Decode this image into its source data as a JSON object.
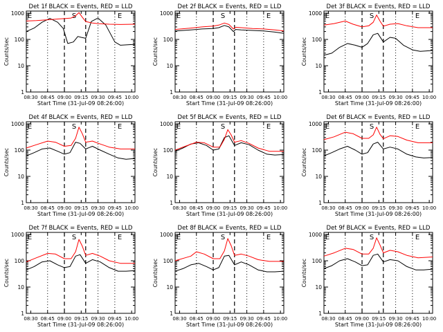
{
  "figure": {
    "xlabel": "Start Time (31-Jul-09 08:26:00)",
    "ylabel": "Counts/sec",
    "series_colors": {
      "events": "#000000",
      "lld": "#ff0000"
    }
  },
  "chart_data": [
    {
      "type": "line",
      "title": "Det 1f BLACK = Events, RED = LLD",
      "x_ticks": [
        "08:30",
        "08:45",
        "09:00",
        "09:15",
        "09:30",
        "09:45",
        "10:00"
      ],
      "y_ticks": [
        "1",
        "10",
        "100",
        "1000"
      ],
      "ylim": [
        1,
        1200
      ],
      "ylog": true,
      "markers": [
        "E",
        "S",
        "E"
      ],
      "dashed_lines_at": [
        "09:00",
        "09:19"
      ],
      "dotted_lines_at": [
        "08:45",
        "09:30",
        "09:45"
      ],
      "series": [
        {
          "color": "black",
          "x": [
            "08:26",
            "08:33",
            "08:40",
            "08:47",
            "08:54",
            "08:59",
            "09:03",
            "09:08",
            "09:12",
            "09:15",
            "09:19",
            "09:24",
            "09:30",
            "09:37",
            "09:45",
            "09:50",
            "09:55",
            "10:03"
          ],
          "y": [
            200,
            270,
            450,
            630,
            450,
            260,
            70,
            80,
            130,
            120,
            110,
            480,
            650,
            350,
            80,
            60,
            62,
            65
          ]
        },
        {
          "color": "red",
          "x": [
            "08:26",
            "08:35",
            "08:45",
            "08:55",
            "09:00",
            "09:06",
            "09:10",
            "09:13",
            "09:16",
            "09:19",
            "09:25",
            "09:30",
            "09:40",
            "09:50",
            "10:03"
          ],
          "y": [
            500,
            520,
            560,
            600,
            620,
            650,
            800,
            1050,
            700,
            480,
            420,
            400,
            380,
            370,
            380
          ]
        }
      ]
    },
    {
      "type": "line",
      "title": "Det 2f BLACK = Events, RED = LLD",
      "x_ticks": [
        "08:30",
        "08:45",
        "09:00",
        "09:15",
        "09:30",
        "09:45",
        "10:00"
      ],
      "y_ticks": [
        "1",
        "10",
        "100",
        "1000"
      ],
      "ylim": [
        1,
        1200
      ],
      "ylog": true,
      "markers": [
        "E",
        "S",
        "E"
      ],
      "dashed_lines_at": [
        "09:00",
        "09:19"
      ],
      "dotted_lines_at": [
        "08:45",
        "09:30",
        "09:45"
      ],
      "series": [
        {
          "color": "black",
          "x": [
            "08:26",
            "08:40",
            "08:50",
            "09:00",
            "09:05",
            "09:10",
            "09:14",
            "09:18",
            "09:20",
            "09:25",
            "09:35",
            "09:45",
            "09:55",
            "10:03"
          ],
          "y": [
            210,
            230,
            250,
            260,
            280,
            340,
            300,
            200,
            240,
            230,
            220,
            210,
            190,
            170
          ]
        },
        {
          "color": "red",
          "x": [
            "08:26",
            "08:40",
            "08:50",
            "09:00",
            "09:05",
            "09:10",
            "09:14",
            "09:18",
            "09:20",
            "09:25",
            "09:35",
            "09:45",
            "09:55",
            "10:03"
          ],
          "y": [
            240,
            270,
            300,
            320,
            350,
            420,
            370,
            250,
            290,
            280,
            260,
            250,
            230,
            210
          ]
        }
      ]
    },
    {
      "type": "line",
      "title": "Det 3f BLACK = Events, RED = LLD",
      "x_ticks": [
        "08:30",
        "08:45",
        "09:00",
        "09:15",
        "09:30",
        "09:45",
        "10:00"
      ],
      "y_ticks": [
        "1",
        "10",
        "100",
        "1000"
      ],
      "ylim": [
        1,
        1200
      ],
      "ylog": true,
      "markers": [
        "E",
        "S",
        "E"
      ],
      "dashed_lines_at": [
        "09:00",
        "09:19"
      ],
      "dotted_lines_at": [
        "08:45",
        "09:30",
        "09:45"
      ],
      "series": [
        {
          "color": "black",
          "x": [
            "08:26",
            "08:33",
            "08:40",
            "08:47",
            "08:54",
            "09:00",
            "09:05",
            "09:10",
            "09:14",
            "09:19",
            "09:25",
            "09:30",
            "09:37",
            "09:45",
            "09:52",
            "10:03"
          ],
          "y": [
            25,
            30,
            50,
            70,
            60,
            50,
            70,
            150,
            170,
            80,
            120,
            110,
            60,
            40,
            35,
            38
          ]
        },
        {
          "color": "red",
          "x": [
            "08:26",
            "08:35",
            "08:45",
            "08:52",
            "09:00",
            "09:06",
            "09:10",
            "09:13",
            "09:16",
            "09:19",
            "09:25",
            "09:32",
            "09:40",
            "09:50",
            "10:03"
          ],
          "y": [
            350,
            400,
            500,
            380,
            300,
            330,
            450,
            850,
            500,
            320,
            380,
            400,
            330,
            280,
            280
          ]
        }
      ]
    },
    {
      "type": "line",
      "title": "Det 4f BLACK = Events, RED = LLD",
      "x_ticks": [
        "08:30",
        "08:45",
        "09:00",
        "09:15",
        "09:30",
        "09:45",
        "10:00"
      ],
      "y_ticks": [
        "1",
        "10",
        "100",
        "1000"
      ],
      "ylim": [
        1,
        1200
      ],
      "ylog": true,
      "markers": [
        "E",
        "S",
        "E"
      ],
      "dashed_lines_at": [
        "09:00",
        "09:19"
      ],
      "dotted_lines_at": [
        "08:45",
        "09:30",
        "09:45"
      ],
      "series": [
        {
          "color": "black",
          "x": [
            "08:26",
            "08:33",
            "08:40",
            "08:47",
            "08:54",
            "09:00",
            "09:05",
            "09:10",
            "09:14",
            "09:19",
            "09:25",
            "09:32",
            "09:40",
            "09:48",
            "09:55",
            "10:03"
          ],
          "y": [
            60,
            80,
            110,
            120,
            90,
            70,
            80,
            200,
            180,
            110,
            140,
            100,
            70,
            50,
            45,
            48
          ]
        },
        {
          "color": "red",
          "x": [
            "08:26",
            "08:35",
            "08:45",
            "08:52",
            "09:00",
            "09:06",
            "09:10",
            "09:13",
            "09:16",
            "09:19",
            "09:25",
            "09:32",
            "09:40",
            "09:50",
            "10:03"
          ],
          "y": [
            120,
            160,
            220,
            200,
            140,
            150,
            280,
            750,
            420,
            200,
            220,
            170,
            130,
            110,
            110
          ]
        }
      ]
    },
    {
      "type": "line",
      "title": "Det 5f BLACK = Events, RED = LLD",
      "x_ticks": [
        "08:30",
        "08:45",
        "09:00",
        "09:15",
        "09:30",
        "09:45",
        "10:00"
      ],
      "y_ticks": [
        "1",
        "10",
        "100",
        "1000"
      ],
      "ylim": [
        1,
        1200
      ],
      "ylog": true,
      "markers": [
        "E",
        "S",
        "E"
      ],
      "dashed_lines_at": [
        "09:00",
        "09:19"
      ],
      "dotted_lines_at": [
        "08:45",
        "09:30",
        "09:45"
      ],
      "series": [
        {
          "color": "black",
          "x": [
            "08:26",
            "08:33",
            "08:40",
            "08:47",
            "08:54",
            "09:00",
            "09:05",
            "09:10",
            "09:14",
            "09:19",
            "09:25",
            "09:32",
            "09:40",
            "09:48",
            "09:55",
            "10:03"
          ],
          "y": [
            90,
            120,
            170,
            190,
            150,
            100,
            110,
            300,
            350,
            150,
            190,
            160,
            100,
            70,
            65,
            68
          ]
        },
        {
          "color": "red",
          "x": [
            "08:26",
            "08:35",
            "08:45",
            "08:52",
            "09:00",
            "09:06",
            "09:10",
            "09:13",
            "09:16",
            "09:19",
            "09:25",
            "09:32",
            "09:40",
            "09:50",
            "10:03"
          ],
          "y": [
            100,
            140,
            200,
            190,
            130,
            130,
            260,
            600,
            380,
            200,
            230,
            180,
            120,
            90,
            90
          ]
        }
      ]
    },
    {
      "type": "line",
      "title": "Det 6f BLACK = Events, RED = LLD",
      "x_ticks": [
        "08:30",
        "08:45",
        "09:00",
        "09:15",
        "09:30",
        "09:45",
        "10:00"
      ],
      "y_ticks": [
        "1",
        "10",
        "100",
        "1000"
      ],
      "ylim": [
        1,
        1200
      ],
      "ylog": true,
      "markers": [
        "E",
        "S",
        "E"
      ],
      "dashed_lines_at": [
        "09:00",
        "09:19"
      ],
      "dotted_lines_at": [
        "08:45",
        "09:30",
        "09:45"
      ],
      "series": [
        {
          "color": "black",
          "x": [
            "08:26",
            "08:33",
            "08:40",
            "08:47",
            "08:54",
            "09:00",
            "09:05",
            "09:10",
            "09:14",
            "09:19",
            "09:25",
            "09:32",
            "09:40",
            "09:48",
            "09:55",
            "10:03"
          ],
          "y": [
            60,
            80,
            110,
            140,
            100,
            70,
            80,
            170,
            200,
            110,
            130,
            110,
            70,
            55,
            50,
            52
          ]
        },
        {
          "color": "red",
          "x": [
            "08:26",
            "08:35",
            "08:45",
            "08:52",
            "09:00",
            "09:06",
            "09:10",
            "09:13",
            "09:16",
            "09:19",
            "09:25",
            "09:32",
            "09:40",
            "09:50",
            "10:03"
          ],
          "y": [
            250,
            320,
            480,
            420,
            280,
            280,
            380,
            750,
            400,
            270,
            350,
            330,
            240,
            190,
            190
          ]
        }
      ]
    },
    {
      "type": "line",
      "title": "Det 7f BLACK = Events, RED = LLD",
      "x_ticks": [
        "08:30",
        "08:45",
        "09:00",
        "09:15",
        "09:30",
        "09:45",
        "10:00"
      ],
      "y_ticks": [
        "1",
        "10",
        "100",
        "1000"
      ],
      "ylim": [
        1,
        1200
      ],
      "ylog": true,
      "markers": [
        "E",
        "S",
        "E"
      ],
      "dashed_lines_at": [
        "09:00",
        "09:19"
      ],
      "dotted_lines_at": [
        "08:45",
        "09:30",
        "09:45"
      ],
      "series": [
        {
          "color": "black",
          "x": [
            "08:26",
            "08:33",
            "08:40",
            "08:47",
            "08:54",
            "09:00",
            "09:05",
            "09:10",
            "09:14",
            "09:19",
            "09:25",
            "09:32",
            "09:40",
            "09:48",
            "09:55",
            "10:03"
          ],
          "y": [
            45,
            60,
            90,
            100,
            70,
            55,
            60,
            150,
            170,
            80,
            110,
            90,
            55,
            40,
            40,
            42
          ]
        },
        {
          "color": "red",
          "x": [
            "08:26",
            "08:35",
            "08:45",
            "08:52",
            "09:00",
            "09:06",
            "09:10",
            "09:13",
            "09:16",
            "09:19",
            "09:25",
            "09:32",
            "09:40",
            "09:50",
            "10:03"
          ],
          "y": [
            90,
            130,
            190,
            180,
            120,
            120,
            220,
            650,
            360,
            160,
            190,
            150,
            100,
            80,
            80
          ]
        }
      ]
    },
    {
      "type": "line",
      "title": "Det 8f BLACK = Events, RED = LLD",
      "x_ticks": [
        "08:30",
        "08:45",
        "09:00",
        "09:15",
        "09:30",
        "09:45",
        "10:00"
      ],
      "y_ticks": [
        "1",
        "10",
        "100",
        "1000"
      ],
      "ylim": [
        1,
        1200
      ],
      "ylog": true,
      "markers": [
        "E",
        "S",
        "E"
      ],
      "dashed_lines_at": [
        "09:00",
        "09:19"
      ],
      "dotted_lines_at": [
        "08:45",
        "09:30",
        "09:45"
      ],
      "series": [
        {
          "color": "black",
          "x": [
            "08:26",
            "08:33",
            "08:40",
            "08:47",
            "08:54",
            "09:00",
            "09:05",
            "09:10",
            "09:14",
            "09:19",
            "09:25",
            "09:32",
            "09:40",
            "09:48",
            "09:55",
            "10:03"
          ],
          "y": [
            40,
            50,
            70,
            80,
            60,
            45,
            55,
            150,
            160,
            70,
            90,
            70,
            45,
            38,
            38,
            40
          ]
        },
        {
          "color": "red",
          "x": [
            "08:26",
            "08:35",
            "08:40",
            "08:45",
            "08:52",
            "09:00",
            "09:06",
            "09:10",
            "09:13",
            "09:16",
            "09:19",
            "09:25",
            "09:32",
            "09:40",
            "09:50",
            "10:03"
          ],
          "y": [
            100,
            130,
            150,
            220,
            180,
            120,
            120,
            240,
            700,
            380,
            160,
            180,
            150,
            110,
            95,
            95
          ]
        }
      ]
    },
    {
      "type": "line",
      "title": "Det 9f BLACK = Events, RED = LLD",
      "x_ticks": [
        "08:30",
        "08:45",
        "09:00",
        "09:15",
        "09:30",
        "09:45",
        "10:00"
      ],
      "y_ticks": [
        "1",
        "10",
        "100",
        "1000"
      ],
      "ylim": [
        1,
        1200
      ],
      "ylog": true,
      "markers": [
        "E",
        "S",
        "E"
      ],
      "dashed_lines_at": [
        "09:00",
        "09:19"
      ],
      "dotted_lines_at": [
        "08:45",
        "09:30",
        "09:45"
      ],
      "series": [
        {
          "color": "black",
          "x": [
            "08:26",
            "08:33",
            "08:40",
            "08:47",
            "08:54",
            "09:00",
            "09:05",
            "09:10",
            "09:14",
            "09:19",
            "09:25",
            "09:32",
            "09:40",
            "09:48",
            "09:55",
            "10:03"
          ],
          "y": [
            50,
            65,
            100,
            120,
            90,
            65,
            70,
            160,
            180,
            90,
            110,
            100,
            60,
            45,
            45,
            48
          ]
        },
        {
          "color": "red",
          "x": [
            "08:26",
            "08:35",
            "08:45",
            "08:52",
            "09:00",
            "09:06",
            "09:10",
            "09:13",
            "09:16",
            "09:19",
            "09:25",
            "09:32",
            "09:40",
            "09:50",
            "10:03"
          ],
          "y": [
            150,
            200,
            300,
            270,
            180,
            180,
            300,
            750,
            400,
            200,
            250,
            220,
            160,
            130,
            140
          ]
        }
      ]
    }
  ]
}
